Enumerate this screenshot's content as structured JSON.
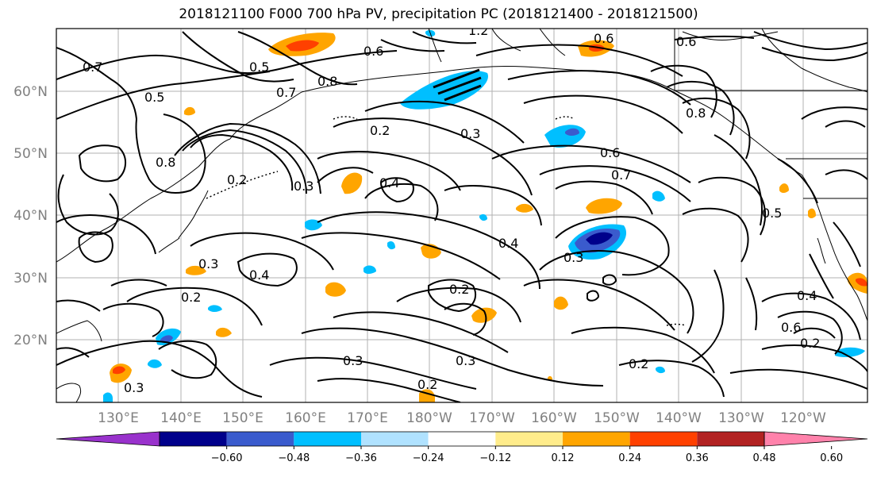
{
  "title": "2018121100 F000 700 hPa PV, precipitation PC (2018121400 - 2018121500)",
  "map": {
    "lat_ticks": [
      "60°N",
      "50°N",
      "40°N",
      "30°N",
      "20°N"
    ],
    "lon_ticks": [
      "130°E",
      "140°E",
      "150°E",
      "160°E",
      "170°E",
      "180°W",
      "170°W",
      "160°W",
      "150°W",
      "140°W",
      "130°W",
      "120°W"
    ],
    "contour_labels": [
      "0.5",
      "0.6",
      "0.7",
      "0.5",
      "0.8",
      "0.7",
      "0.2",
      "0.3",
      "0.4",
      "0.3",
      "0.2",
      "0.4",
      "0.3",
      "0.4",
      "0.3",
      "0.2",
      "0.2",
      "0.3",
      "0.3",
      "0.2",
      "0.2",
      "0.6",
      "0.7",
      "0.6",
      "0.8",
      "0.5",
      "0.6",
      "0.4",
      "0.2",
      "1.2",
      "0.8",
      "0.6",
      "0.3"
    ]
  },
  "colorbar": {
    "ticks": [
      "−0.60",
      "−0.48",
      "−0.36",
      "−0.24",
      "−0.12",
      "0.12",
      "0.24",
      "0.36",
      "0.48",
      "0.60"
    ],
    "colors": [
      "#9932cc",
      "#00008b",
      "#3a5bcd",
      "#00bfff",
      "#b0e2ff",
      "#ffffff",
      "#ffec8b",
      "#ffa500",
      "#ff4000",
      "#b22222",
      "#ff82ab"
    ]
  }
}
